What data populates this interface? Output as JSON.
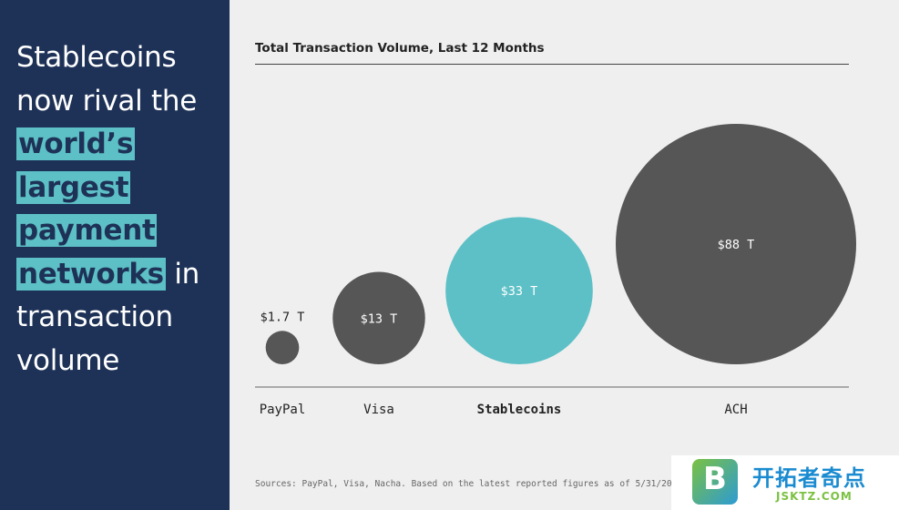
{
  "headline": {
    "line1": "Stablecoins",
    "line2": "now rival the",
    "highlight1": "world’s",
    "highlight2": "largest",
    "highlight3": "payment",
    "highlight4": "networks",
    "line7_rest": " in",
    "line8": "transaction",
    "line9": "volume"
  },
  "chart_data": {
    "type": "bubble",
    "title": "Total Transaction Volume, Last 12 Months",
    "unit": "T",
    "categories": [
      "PayPal",
      "Visa",
      "Stablecoins",
      "ACH"
    ],
    "values": [
      1.7,
      13,
      33,
      88
    ],
    "value_labels": [
      "$1.7 T",
      "$13 T",
      "$33 T",
      "$88 T"
    ],
    "highlight_index": 2,
    "colors": {
      "default": "#565656",
      "highlight": "#5cc0c6"
    },
    "source": "Sources: PayPal, Visa, Nacha. Based on the latest reported figures as of 5/31/2025."
  },
  "colors": {
    "sidebar": "#1e3257",
    "accent": "#5cc0c6",
    "background": "#efefef"
  },
  "watermark": {
    "name": "开拓者奇点",
    "url": "JSKTZ.COM",
    "logo_letter": "B"
  }
}
